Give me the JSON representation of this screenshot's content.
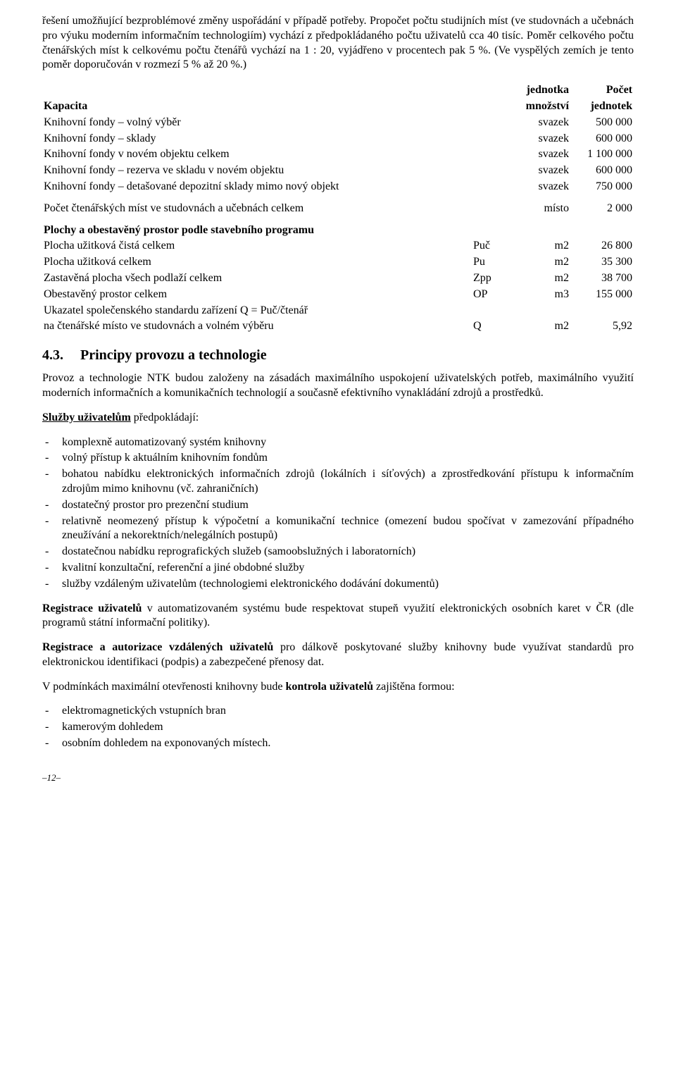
{
  "intro_para": "řešení umožňující bezproblémové změny uspořádání v případě potřeby. Propočet počtu studijních míst (ve studovnách a učebnách pro výuku moderním informačním technologiím) vychází z předpokládaného počtu uživatelů cca 40 tisíc. Poměr celkového počtu čtenářských míst k celkovému počtu čtenářů vychází na 1 : 20, vyjádřeno v procentech pak 5 %. (Ve vyspělých zemích je tento poměr doporučován v rozmezí 5 % až  20 %.)",
  "table_header": {
    "label": "Kapacita",
    "unit_top": "jednotka",
    "unit_bottom": "množství",
    "count_top": "Počet",
    "count_bottom": "jednotek"
  },
  "capacity_rows": [
    {
      "label": "Knihovní fondy – volný výběr",
      "unit": "svazek",
      "num": "500 000"
    },
    {
      "label": "Knihovní fondy – sklady",
      "unit": "svazek",
      "num": "600 000"
    },
    {
      "label": "Knihovní fondy v novém objektu celkem",
      "unit": "svazek",
      "num": "1 100 000"
    },
    {
      "label": "Knihovní fondy – rezerva ve skladu v novém objektu",
      "unit": "svazek",
      "num": "600 000"
    },
    {
      "label": "Knihovní fondy – detašované depozitní sklady mimo nový objekt",
      "unit": "svazek",
      "num": "750 000"
    }
  ],
  "reader_row": {
    "label": "Počet čtenářských míst ve studovnách a učebnách celkem",
    "unit": "místo",
    "num": "2 000"
  },
  "areas_heading": "Plochy a obestavěný prostor podle stavebního programu",
  "areas_rows": [
    {
      "label": "Plocha užitková čistá celkem",
      "code": "Puč",
      "unit": "m2",
      "num": "26 800"
    },
    {
      "label": "Plocha užitková celkem",
      "code": "Pu",
      "unit": "m2",
      "num": "35 300"
    },
    {
      "label": "Zastavěná plocha všech podlaží celkem",
      "code": "Zpp",
      "unit": "m2",
      "num": "38 700"
    },
    {
      "label": "Obestavěný prostor celkem",
      "code": "OP",
      "unit": "m3",
      "num": "155 000"
    }
  ],
  "indicator_line1": "Ukazatel společenského standardu zařízení Q = Puč/čtenář",
  "indicator_row": {
    "label": "na čtenářské místo ve studovnách a volném výběru",
    "code": "Q",
    "unit": "m2",
    "num": "5,92"
  },
  "section_num": "4.3.",
  "section_title": "Principy provozu a technologie",
  "para_principy": "Provoz a technologie NTK budou založeny na zásadách maximálního uspokojení uživatelských potřeb, maximálního využití moderních informačních a komunikačních technologií a současně efektivního vynakládání zdrojů a prostředků.",
  "sluzby_intro_bold": "Služby uživatelům",
  "sluzby_intro_rest": " předpokládají:",
  "sluzby_items": [
    "komplexně automatizovaný systém knihovny",
    "volný přístup k aktuálním knihovním fondům",
    "bohatou nabídku elektronických informačních zdrojů (lokálních i síťových) a zprostředkování přístupu k informačním  zdrojům mimo knihovnu (vč. zahraničních)",
    "dostatečný prostor pro prezenční studium",
    "relativně neomezený přístup k výpočetní a komunikační technice (omezení budou spočívat v zamezování případného zneužívání a nekorektních/nelegálních postupů)",
    "dostatečnou nabídku reprografických služeb (samoobslužných i laboratorních)",
    "kvalitní konzultační, referenční a jiné obdobné služby",
    "služby vzdáleným uživatelům (technologiemi elektronického dodávání dokumentů)"
  ],
  "registrace_bold": "Registrace uživatelů",
  "registrace_rest": " v automatizovaném systému bude respektovat stupeň využití elektronických osobních karet v ČR (dle programů státní informační politiky).",
  "autorizace_bold": "Registrace a autorizace vzdálených uživatelů",
  "autorizace_rest": " pro dálkově poskytované služby knihovny bude využívat standardů pro elektronickou identifikaci (podpis) a zabezpečené přenosy dat.",
  "kontrola_pre": "V podmínkách maximální otevřenosti knihovny bude ",
  "kontrola_bold": "kontrola uživatelů",
  "kontrola_post": " zajištěna formou:",
  "kontrola_items": [
    "elektromagnetických vstupních bran",
    "kamerovým dohledem",
    "osobním dohledem na exponovaných místech."
  ],
  "footer": "–12–"
}
